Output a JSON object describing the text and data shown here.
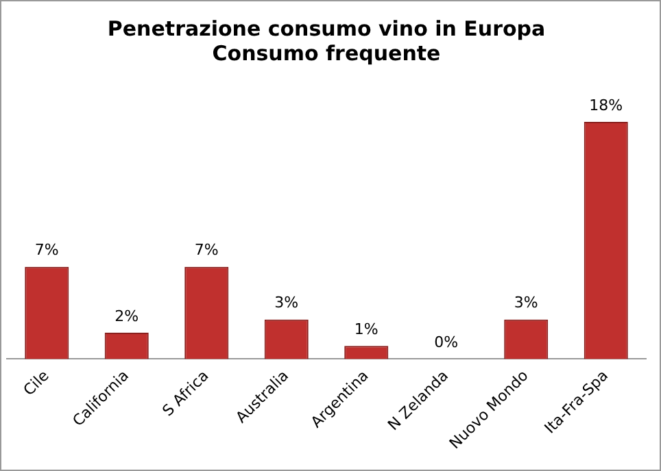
{
  "chart_data": {
    "type": "bar",
    "title": [
      "Penetrazione consumo vino in Europa",
      "Consumo frequente"
    ],
    "categories": [
      "Cile",
      "California",
      "S Africa",
      "Australia",
      "Argentina",
      "N Zelanda",
      "Nuovo Mondo",
      "Ita-Fra-Spa"
    ],
    "values": [
      7,
      2,
      7,
      3,
      1,
      0,
      3,
      18
    ],
    "value_labels": [
      "7%",
      "2%",
      "7%",
      "3%",
      "1%",
      "0%",
      "3%",
      "18%"
    ],
    "color": "#c0302e",
    "grid": false,
    "legend": false
  }
}
